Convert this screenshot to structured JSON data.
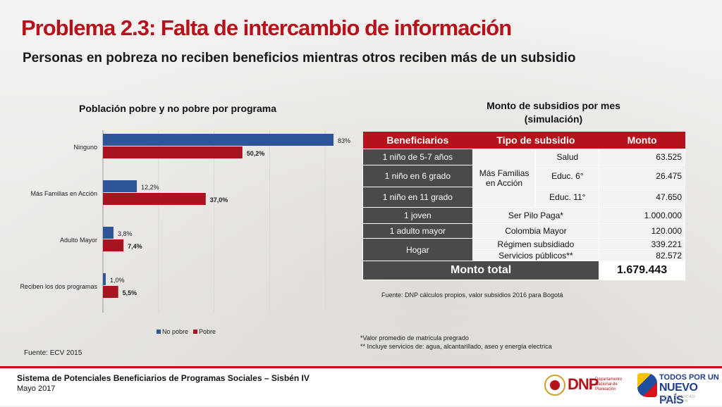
{
  "header": {
    "title": "Problema 2.3: Falta de intercambio de información",
    "subtitle": "Personas en pobreza no reciben beneficios mientras otros reciben más de un subsidio"
  },
  "chart_data": {
    "type": "bar",
    "orientation": "horizontal",
    "title": "Población pobre y no pobre por programa",
    "categories": [
      "Ninguno",
      "Más Familias en Acción",
      "Adulto Mayor",
      "Reciben los dos programas"
    ],
    "series": [
      {
        "name": "No pobre",
        "color": "#2e5597",
        "values": [
          83,
          12.2,
          3.8,
          1.0
        ],
        "labels": [
          "83%",
          "12,2%",
          "3,8%",
          "1,0%"
        ]
      },
      {
        "name": "Pobre",
        "color": "#a5141f",
        "values": [
          50.2,
          37.0,
          7.4,
          5.5
        ],
        "labels": [
          "50,2%",
          "37,0%",
          "7,4%",
          "5,5%"
        ]
      }
    ],
    "xlim": [
      0,
      100
    ],
    "grid": true,
    "legend": "bottom",
    "source": "Fuente: ECV 2015"
  },
  "table": {
    "title_line1": "Monto de subsidios por mes",
    "title_line2": "(simulación)",
    "headers": [
      "Beneficiarios",
      "Tipo de subsidio",
      "Monto"
    ],
    "rows": [
      {
        "beneficiario": "1 niño de 5-7 años",
        "programa": "Más Familias en Acción",
        "tipo": "Salud",
        "monto": "63.525"
      },
      {
        "beneficiario": "1 niño en 6 grado",
        "tipo": "Educ. 6°",
        "monto": "26.475"
      },
      {
        "beneficiario": "1 niño en 11 grado",
        "tipo": "Educ. 11°",
        "monto": "47.650"
      },
      {
        "beneficiario": "1 joven",
        "tipo": "Ser Pilo Paga*",
        "monto": "1.000.000"
      },
      {
        "beneficiario": "1 adulto mayor",
        "tipo": "Colombia Mayor",
        "monto": "120.000"
      },
      {
        "beneficiario": "Hogar",
        "tipo": "Régimen subsidiado",
        "monto": "339.221"
      },
      {
        "tipo": "Servicios públicos**",
        "monto": "82.572"
      }
    ],
    "total_label": "Monto total",
    "total_value": "1.679.443",
    "source": "Fuente: DNP cálculos propios, valor subsidios 2016 para Bogotá",
    "note1": "*Valor promedio de matricula pregrado",
    "note2": "** Incluye servicios de: agua, alcantarillado, aseo y energía electrica"
  },
  "footer": {
    "title": "Sistema de Potenciales Beneficiarios de Programas Sociales – Sisbén IV",
    "date": "Mayo 2017",
    "dnp_logo": "DNP",
    "dnp_sub": "Departamento Nacional de Planeación",
    "logo_line1": "TODOS POR UN",
    "logo_line2": "NUEVO PAÍS",
    "logo_line3": "PAZ · EQUIDAD · EDUCACIÓN"
  },
  "colors": {
    "accent": "#b5121b",
    "no_pobre": "#2e5597",
    "pobre": "#a5141f",
    "table_dark": "#4a4a4a"
  }
}
